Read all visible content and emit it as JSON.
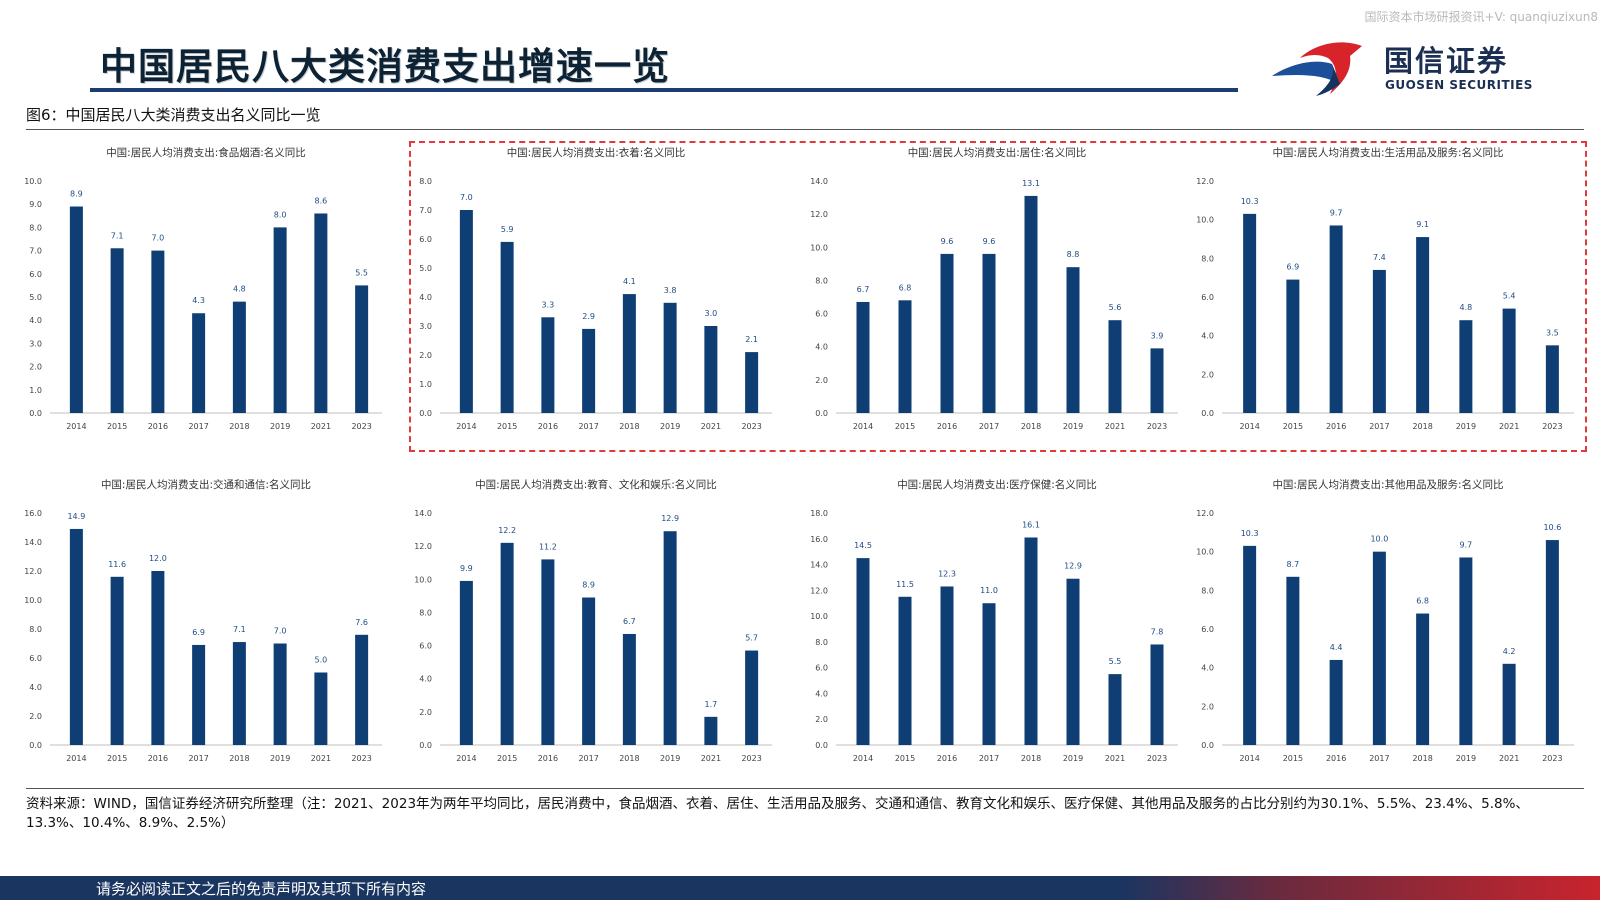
{
  "watermark": "国际资本市场研报资讯+V: quanqiuzixun8",
  "page_title": "中国居民八大类消费支出增速一览",
  "logo": {
    "cn": "国信证券",
    "en": "GUOSEN SECURITIES"
  },
  "figure_label": "图6：中国居民八大类消费支出名义同比一览",
  "colors": {
    "bar": "#0f3e74",
    "accent_red": "#e03a3a",
    "navy": "#1b3d73"
  },
  "chart_data": [
    {
      "type": "bar",
      "title": "中国:居民人均消费支出:食品烟酒:名义同比",
      "categories": [
        "2014",
        "2015",
        "2016",
        "2017",
        "2018",
        "2019",
        "2021",
        "2023"
      ],
      "values": [
        8.9,
        7.1,
        7.0,
        4.3,
        4.8,
        8.0,
        8.6,
        5.5
      ],
      "labels": [
        "8.9",
        "7.1",
        "7.0",
        "4.3",
        "4.8",
        "8.0",
        "8.6",
        "5.5"
      ],
      "yticks": [
        "0.0",
        "1.0",
        "2.0",
        "3.0",
        "4.0",
        "5.0",
        "6.0",
        "7.0",
        "8.0",
        "9.0",
        "10.0"
      ],
      "ylim": [
        0,
        10
      ]
    },
    {
      "type": "bar",
      "title": "中国:居民人均消费支出:衣着:名义同比",
      "categories": [
        "2014",
        "2015",
        "2016",
        "2017",
        "2018",
        "2019",
        "2021",
        "2023"
      ],
      "values": [
        7.0,
        5.9,
        3.3,
        2.9,
        4.1,
        3.8,
        3.0,
        2.1
      ],
      "labels": [
        "7.0",
        "5.9",
        "3.3",
        "2.9",
        "4.1",
        "3.8",
        "3.0",
        "2.1"
      ],
      "yticks": [
        "0.0",
        "1.0",
        "2.0",
        "3.0",
        "4.0",
        "5.0",
        "6.0",
        "7.0",
        "8.0"
      ],
      "ylim": [
        0,
        8
      ]
    },
    {
      "type": "bar",
      "title": "中国:居民人均消费支出:居住:名义同比",
      "categories": [
        "2014",
        "2015",
        "2016",
        "2017",
        "2018",
        "2019",
        "2021",
        "2023"
      ],
      "values": [
        6.7,
        6.8,
        9.6,
        9.6,
        13.1,
        8.8,
        5.6,
        3.9
      ],
      "labels": [
        "6.7",
        "6.8",
        "9.6",
        "9.6",
        "13.1",
        "8.8",
        "5.6",
        "3.9"
      ],
      "yticks": [
        "0.0",
        "2.0",
        "4.0",
        "6.0",
        "8.0",
        "10.0",
        "12.0",
        "14.0"
      ],
      "ylim": [
        0,
        14
      ]
    },
    {
      "type": "bar",
      "title": "中国:居民人均消费支出:生活用品及服务:名义同比",
      "categories": [
        "2014",
        "2015",
        "2016",
        "2017",
        "2018",
        "2019",
        "2021",
        "2023"
      ],
      "values": [
        10.3,
        6.9,
        9.7,
        7.4,
        9.1,
        4.8,
        5.4,
        3.5
      ],
      "labels": [
        "10.3",
        "6.9",
        "9.7",
        "7.4",
        "9.1",
        "4.8",
        "5.4",
        "3.5"
      ],
      "yticks": [
        "0.0",
        "2.0",
        "4.0",
        "6.0",
        "8.0",
        "10.0",
        "12.0"
      ],
      "ylim": [
        0,
        12
      ]
    },
    {
      "type": "bar",
      "title": "中国:居民人均消费支出:交通和通信:名义同比",
      "categories": [
        "2014",
        "2015",
        "2016",
        "2017",
        "2018",
        "2019",
        "2021",
        "2023"
      ],
      "values": [
        14.9,
        11.6,
        12.0,
        6.9,
        7.1,
        7.0,
        5.0,
        7.6
      ],
      "labels": [
        "14.9",
        "11.6",
        "12.0",
        "6.9",
        "7.1",
        "7.0",
        "5.0",
        "7.6"
      ],
      "yticks": [
        "0.0",
        "2.0",
        "4.0",
        "6.0",
        "8.0",
        "10.0",
        "12.0",
        "14.0",
        "16.0"
      ],
      "ylim": [
        0,
        16
      ]
    },
    {
      "type": "bar",
      "title": "中国:居民人均消费支出:教育、文化和娱乐:名义同比",
      "categories": [
        "2014",
        "2015",
        "2016",
        "2017",
        "2018",
        "2019",
        "2021",
        "2023"
      ],
      "values": [
        9.9,
        12.2,
        11.2,
        8.9,
        6.7,
        12.9,
        1.7,
        5.7
      ],
      "labels": [
        "9.9",
        "12.2",
        "11.2",
        "8.9",
        "6.7",
        "12.9",
        "1.7",
        "5.7"
      ],
      "yticks": [
        "0.0",
        "2.0",
        "4.0",
        "6.0",
        "8.0",
        "10.0",
        "12.0",
        "14.0"
      ],
      "ylim": [
        0,
        14
      ]
    },
    {
      "type": "bar",
      "title": "中国:居民人均消费支出:医疗保健:名义同比",
      "categories": [
        "2014",
        "2015",
        "2016",
        "2017",
        "2018",
        "2019",
        "2021",
        "2023"
      ],
      "values": [
        14.5,
        11.5,
        12.3,
        11.0,
        16.1,
        12.9,
        5.5,
        7.8
      ],
      "labels": [
        "14.5",
        "11.5",
        "12.3",
        "11.0",
        "16.1",
        "12.9",
        "5.5",
        "7.8"
      ],
      "yticks": [
        "0.0",
        "2.0",
        "4.0",
        "6.0",
        "8.0",
        "10.0",
        "12.0",
        "14.0",
        "16.0",
        "18.0"
      ],
      "ylim": [
        0,
        18
      ]
    },
    {
      "type": "bar",
      "title": "中国:居民人均消费支出:其他用品及服务:名义同比",
      "categories": [
        "2014",
        "2015",
        "2016",
        "2017",
        "2018",
        "2019",
        "2021",
        "2023"
      ],
      "values": [
        10.3,
        8.7,
        4.4,
        10.0,
        6.8,
        9.7,
        4.2,
        10.6
      ],
      "labels": [
        "10.3",
        "8.7",
        "4.4",
        "10.0",
        "6.8",
        "9.7",
        "4.2",
        "10.6"
      ],
      "yticks": [
        "0.0",
        "2.0",
        "4.0",
        "6.0",
        "8.0",
        "10.0",
        "12.0"
      ],
      "ylim": [
        0,
        12
      ]
    }
  ],
  "source_note": "资料来源：WIND，国信证券经济研究所整理（注：2021、2023年为两年平均同比，居民消费中，食品烟酒、衣着、居住、生活用品及服务、交通和通信、教育文化和娱乐、医疗保健、其他用品及服务的占比分别约为30.1%、5.5%、23.4%、5.8%、13.3%、10.4%、8.9%、2.5%）",
  "footer_text": "请务必阅读正文之后的免责声明及其项下所有内容"
}
